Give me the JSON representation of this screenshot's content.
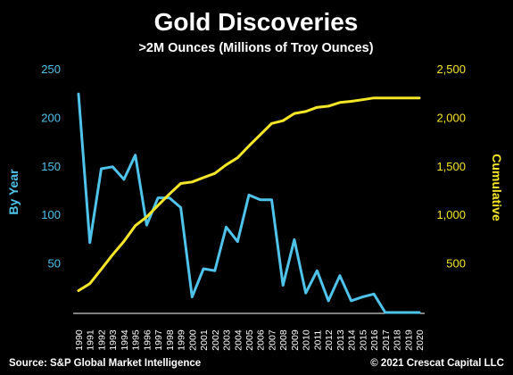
{
  "chart_data": {
    "type": "line",
    "title": "Gold Discoveries",
    "subtitle": ">2M Ounces (Millions of Troy Ounces)",
    "x": [
      "1990",
      "1991",
      "1992",
      "1993",
      "1994",
      "1995",
      "1996",
      "1997",
      "1998",
      "1999",
      "2000",
      "2001",
      "2002",
      "2003",
      "2004",
      "2005",
      "2006",
      "2007",
      "2008",
      "2009",
      "2010",
      "2011",
      "2012",
      "2013",
      "2014",
      "2015",
      "2016",
      "2017",
      "2018",
      "2019",
      "2020"
    ],
    "series": [
      {
        "name": "By Year",
        "axis": "left",
        "color": "#4fc3ea",
        "values": [
          225,
          72,
          148,
          150,
          137,
          162,
          90,
          118,
          118,
          108,
          16,
          45,
          43,
          88,
          73,
          121,
          116,
          116,
          28,
          75,
          20,
          43,
          12,
          38,
          12,
          16,
          19,
          0,
          0,
          0,
          0
        ]
      },
      {
        "name": "Cumulative",
        "axis": "right",
        "color": "#f5e629",
        "values": [
          225,
          297,
          445,
          595,
          732,
          894,
          984,
          1102,
          1220,
          1328,
          1344,
          1389,
          1432,
          1520,
          1593,
          1714,
          1830,
          1946,
          1974,
          2049,
          2069,
          2112,
          2124,
          2162,
          2174,
          2190,
          2209,
          2209,
          2209,
          2209,
          2209
        ]
      }
    ],
    "ylabel_left": "By Year",
    "ylabel_right": "Cumulative",
    "ylim_left": [
      0,
      250
    ],
    "ylim_right": [
      0,
      2500
    ],
    "yticks_left": [
      "",
      "50",
      "100",
      "150",
      "200",
      "250"
    ],
    "yticks_right": [
      "",
      "500",
      "1,000",
      "1,500",
      "2,000",
      "2,500"
    ],
    "grid": false,
    "legend": "none"
  },
  "footer": {
    "source": "Source: S&P Global Market Intelligence",
    "copyright": "© 2021 Crescat Capital LLC"
  }
}
